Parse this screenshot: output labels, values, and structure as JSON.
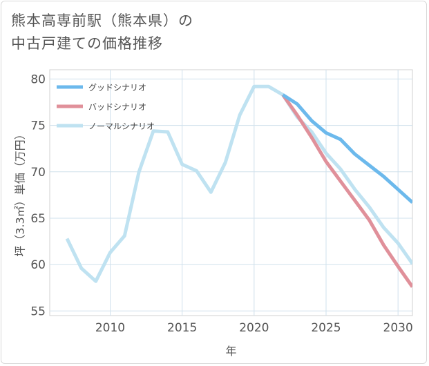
{
  "title_line1": "熊本高専前駅（熊本県）の",
  "title_line2": "中古戸建ての価格推移",
  "chart_data": {
    "type": "line",
    "xlabel": "年",
    "ylabel": "坪（3.3㎡）単価（万円）",
    "xlim": [
      2005.8,
      2031
    ],
    "ylim": [
      54.5,
      81
    ],
    "xticks": [
      2010,
      2015,
      2020,
      2025,
      2030
    ],
    "yticks": [
      55,
      60,
      65,
      70,
      75,
      80
    ],
    "grid": true,
    "legend_position": "top-left",
    "series": [
      {
        "name": "グッドシナリオ",
        "color": "#6cb9ec",
        "x": [
          2022,
          2023,
          2024,
          2025,
          2026,
          2027,
          2028,
          2029,
          2030,
          2031
        ],
        "values": [
          78.3,
          77.3,
          75.5,
          74.2,
          73.5,
          71.9,
          70.7,
          69.5,
          68.1,
          66.7
        ]
      },
      {
        "name": "バッドシナリオ",
        "color": "#e0909a",
        "x": [
          2022,
          2023,
          2024,
          2025,
          2026,
          2027,
          2028,
          2029,
          2030,
          2031
        ],
        "values": [
          78.3,
          76.1,
          73.7,
          71.1,
          69.0,
          66.9,
          64.8,
          62.1,
          59.8,
          57.6
        ]
      },
      {
        "name": "ノーマルシナリオ",
        "color": "#bfe2f1",
        "x": [
          2007,
          2008,
          2009,
          2010,
          2011,
          2012,
          2013,
          2014,
          2015,
          2016,
          2017,
          2018,
          2019,
          2020,
          2021,
          2022,
          2023,
          2024,
          2025,
          2026,
          2027,
          2028,
          2029,
          2030,
          2031
        ],
        "values": [
          62.8,
          59.6,
          58.2,
          61.3,
          63.1,
          70.0,
          74.4,
          74.3,
          70.8,
          70.1,
          67.8,
          71.0,
          76.1,
          79.2,
          79.2,
          78.3,
          75.9,
          74.3,
          72.0,
          70.3,
          68.1,
          66.2,
          64.0,
          62.3,
          60.1
        ]
      }
    ]
  }
}
